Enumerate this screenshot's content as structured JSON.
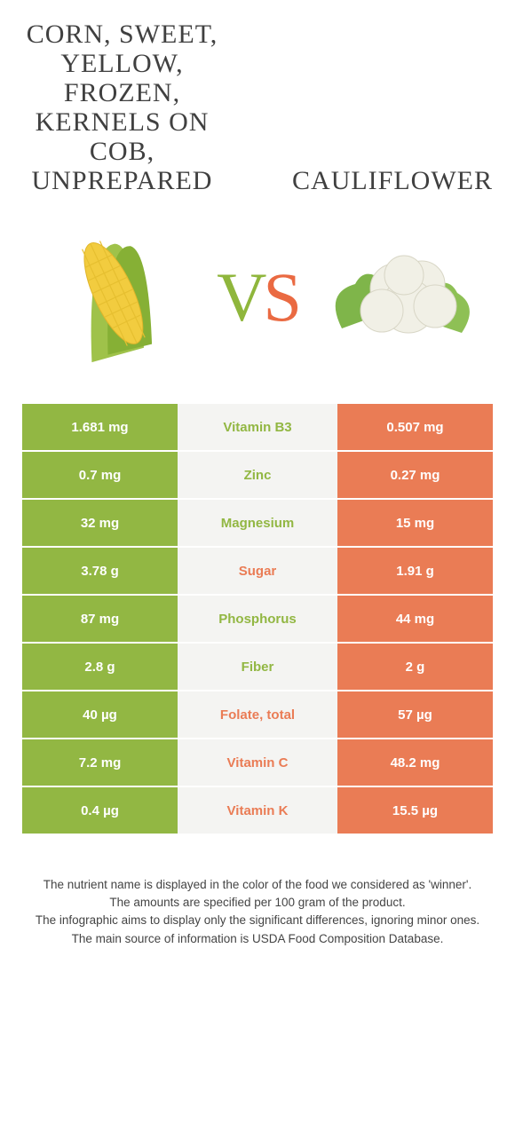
{
  "colors": {
    "left": "#92b743",
    "right": "#ea7c55",
    "row_bg_mid": "#f4f4f2",
    "text": "#404040"
  },
  "header": {
    "left_title": "Corn, sweet, yellow, frozen, kernels on cob, unprepared",
    "right_title": "Cauliflower",
    "vs_v": "V",
    "vs_s": "S"
  },
  "rows": [
    {
      "left": "1.681 mg",
      "label": "Vitamin B3",
      "right": "0.507 mg",
      "winner": "left"
    },
    {
      "left": "0.7 mg",
      "label": "Zinc",
      "right": "0.27 mg",
      "winner": "left"
    },
    {
      "left": "32 mg",
      "label": "Magnesium",
      "right": "15 mg",
      "winner": "left"
    },
    {
      "left": "3.78 g",
      "label": "Sugar",
      "right": "1.91 g",
      "winner": "right"
    },
    {
      "left": "87 mg",
      "label": "Phosphorus",
      "right": "44 mg",
      "winner": "left"
    },
    {
      "left": "2.8 g",
      "label": "Fiber",
      "right": "2 g",
      "winner": "left"
    },
    {
      "left": "40 µg",
      "label": "Folate, total",
      "right": "57 µg",
      "winner": "right"
    },
    {
      "left": "7.2 mg",
      "label": "Vitamin C",
      "right": "48.2 mg",
      "winner": "right"
    },
    {
      "left": "0.4 µg",
      "label": "Vitamin K",
      "right": "15.5 µg",
      "winner": "right"
    }
  ],
  "footer": [
    "The nutrient name is displayed in the color of the food we considered as 'winner'.",
    "The amounts are specified per 100 gram of the product.",
    "The infographic aims to display only the significant differences, ignoring minor ones.",
    "The main source of information is USDA Food Composition Database."
  ]
}
